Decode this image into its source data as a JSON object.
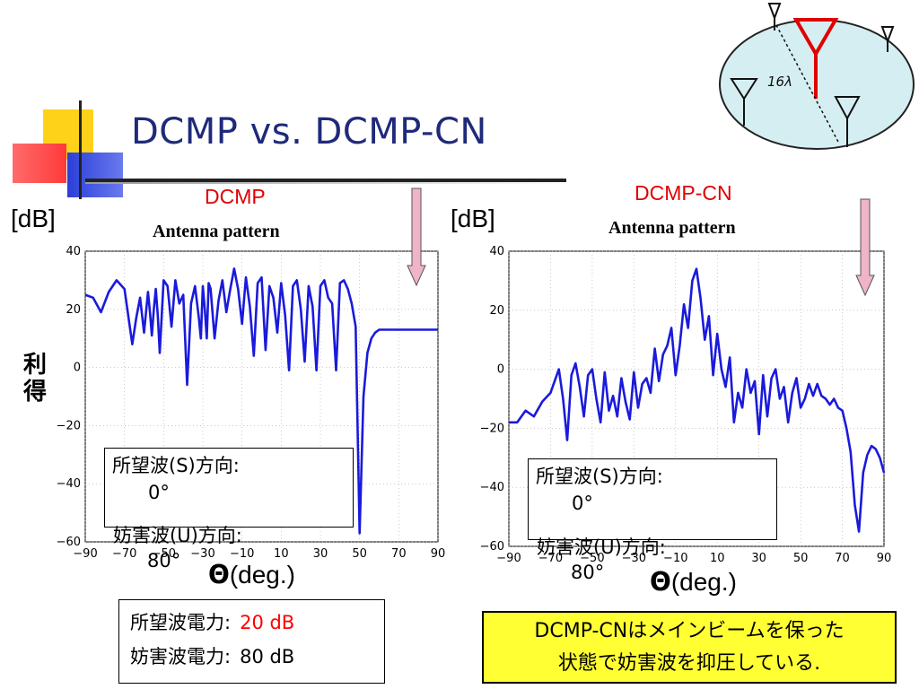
{
  "slide": {
    "title": "DCMP vs. DCMP-CN",
    "ylabel_vertical": [
      "利",
      "得"
    ]
  },
  "chart_data": [
    {
      "type": "line",
      "title": "DCMP",
      "subtitle": "Antenna pattern",
      "y_unit": "[dB]",
      "xlabel_symbol": "Θ",
      "xlabel_unit": "(deg.)",
      "xlim": [
        -90,
        90
      ],
      "ylim": [
        -60,
        40
      ],
      "xticks": [
        -90,
        -70,
        -50,
        -30,
        -10,
        10,
        30,
        50,
        70,
        90
      ],
      "yticks": [
        40,
        20,
        0,
        -20,
        -40,
        -60
      ],
      "grid": true,
      "series": [
        {
          "color": "#1a1adc",
          "x": [
            -90,
            -86,
            -82,
            -78,
            -74,
            -70,
            -66,
            -64,
            -62,
            -60,
            -58,
            -57,
            -56,
            -55,
            -54,
            -53,
            -52,
            -50,
            -48,
            -46,
            -44,
            -42,
            -40,
            -38,
            -36,
            -34,
            -32,
            -31,
            -30,
            -29,
            -28,
            -27,
            -26,
            -24,
            -22,
            -20,
            -18,
            -16,
            -14,
            -12,
            -10,
            -8,
            -6,
            -4,
            -2,
            0,
            2,
            4,
            6,
            8,
            10,
            12,
            14,
            16,
            18,
            20,
            22,
            24,
            26,
            28,
            30,
            32,
            34,
            36,
            38,
            40,
            42,
            44,
            46,
            48,
            50,
            52,
            54,
            56,
            58,
            60,
            62,
            64,
            66,
            68,
            70,
            72,
            74,
            76,
            78,
            80,
            81,
            82,
            83,
            84,
            86,
            88,
            90
          ],
          "y": [
            25,
            24,
            19,
            26,
            30,
            27,
            8,
            17,
            24,
            12,
            26,
            19,
            11,
            20,
            27,
            18,
            5,
            30,
            28,
            14,
            30,
            22,
            25,
            -6,
            22,
            28,
            17,
            10,
            28,
            20,
            10,
            29,
            27,
            10,
            23,
            30,
            19,
            27,
            34,
            27,
            15,
            31,
            21,
            4,
            29,
            31,
            6,
            28,
            24,
            12,
            29,
            18,
            -1,
            28,
            30,
            20,
            2,
            28,
            21,
            -1,
            28,
            30,
            24,
            22,
            -1,
            29,
            30,
            27,
            22,
            14,
            -57,
            -10,
            5,
            10,
            12,
            13,
            13,
            13,
            13,
            13,
            13,
            13,
            13,
            13,
            13,
            13,
            13,
            13,
            13,
            13,
            13,
            13,
            13
          ]
        }
      ],
      "arrow_color": "#f0b4c8",
      "desired_box": {
        "line1": "所望波(S)方向:",
        "line2": "0°",
        "line3": "妨害波(U)方向:",
        "line4": "80°"
      }
    },
    {
      "type": "line",
      "title": "DCMP-CN",
      "subtitle": "Antenna pattern",
      "y_unit": "[dB]",
      "xlabel_symbol": "Θ",
      "xlabel_unit": "(deg.)",
      "xlim": [
        -90,
        90
      ],
      "ylim": [
        -60,
        40
      ],
      "xticks": [
        -90,
        -70,
        -50,
        -30,
        -10,
        10,
        30,
        50,
        70,
        90
      ],
      "yticks": [
        40,
        20,
        0,
        -20,
        -40,
        -60
      ],
      "grid": true,
      "series": [
        {
          "color": "#1a1adc",
          "x": [
            -90,
            -86,
            -82,
            -78,
            -74,
            -70,
            -66,
            -64,
            -62,
            -60,
            -58,
            -56,
            -54,
            -52,
            -50,
            -48,
            -46,
            -44,
            -42,
            -40,
            -38,
            -36,
            -34,
            -32,
            -30,
            -28,
            -26,
            -24,
            -22,
            -20,
            -18,
            -16,
            -14,
            -12,
            -10,
            -8,
            -6,
            -4,
            -2,
            0,
            2,
            4,
            6,
            8,
            10,
            12,
            14,
            16,
            18,
            20,
            22,
            24,
            26,
            28,
            30,
            32,
            34,
            36,
            38,
            40,
            42,
            44,
            46,
            48,
            50,
            52,
            54,
            56,
            58,
            60,
            62,
            64,
            66,
            68,
            70,
            72,
            74,
            76,
            78,
            80,
            82,
            84,
            86,
            88,
            90
          ],
          "y": [
            -18,
            -18,
            -14,
            -16,
            -11,
            -8,
            0,
            -10,
            -24,
            -2,
            2,
            -6,
            -16,
            -2,
            0,
            -10,
            -18,
            -1,
            -14,
            -9,
            -16,
            -3,
            -11,
            -17,
            -1,
            -13,
            -5,
            -3,
            -8,
            7,
            -4,
            5,
            8,
            14,
            -2,
            8,
            22,
            14,
            30,
            34,
            24,
            10,
            18,
            -2,
            12,
            0,
            -6,
            4,
            -18,
            -8,
            -13,
            0,
            -8,
            -4,
            -22,
            -2,
            -16,
            -3,
            0,
            -10,
            -6,
            -18,
            -8,
            -3,
            -13,
            -10,
            -5,
            -9,
            -5,
            -9,
            -10,
            -12,
            -10,
            -13,
            -14,
            -20,
            -28,
            -46,
            -55,
            -35,
            -29,
            -26,
            -27,
            -30,
            -35
          ]
        }
      ],
      "arrow_color": "#f0b4c8",
      "desired_box": {
        "line1": "所望波(S)方向:",
        "line2": "0°",
        "line3": "妨害波(U)方向:",
        "line4": "80°"
      }
    }
  ],
  "power": {
    "desired_label": "所望波電力:",
    "desired_value": "20 dB",
    "desired_color": "#ff0000",
    "interf_label": "妨害波電力:",
    "interf_value": "80 dB"
  },
  "note": {
    "line1": "DCMP-CNはメインビームを保った",
    "line2": "状態で妨害波を抑圧している."
  },
  "diagram": {
    "spacing_label": "16λ"
  }
}
